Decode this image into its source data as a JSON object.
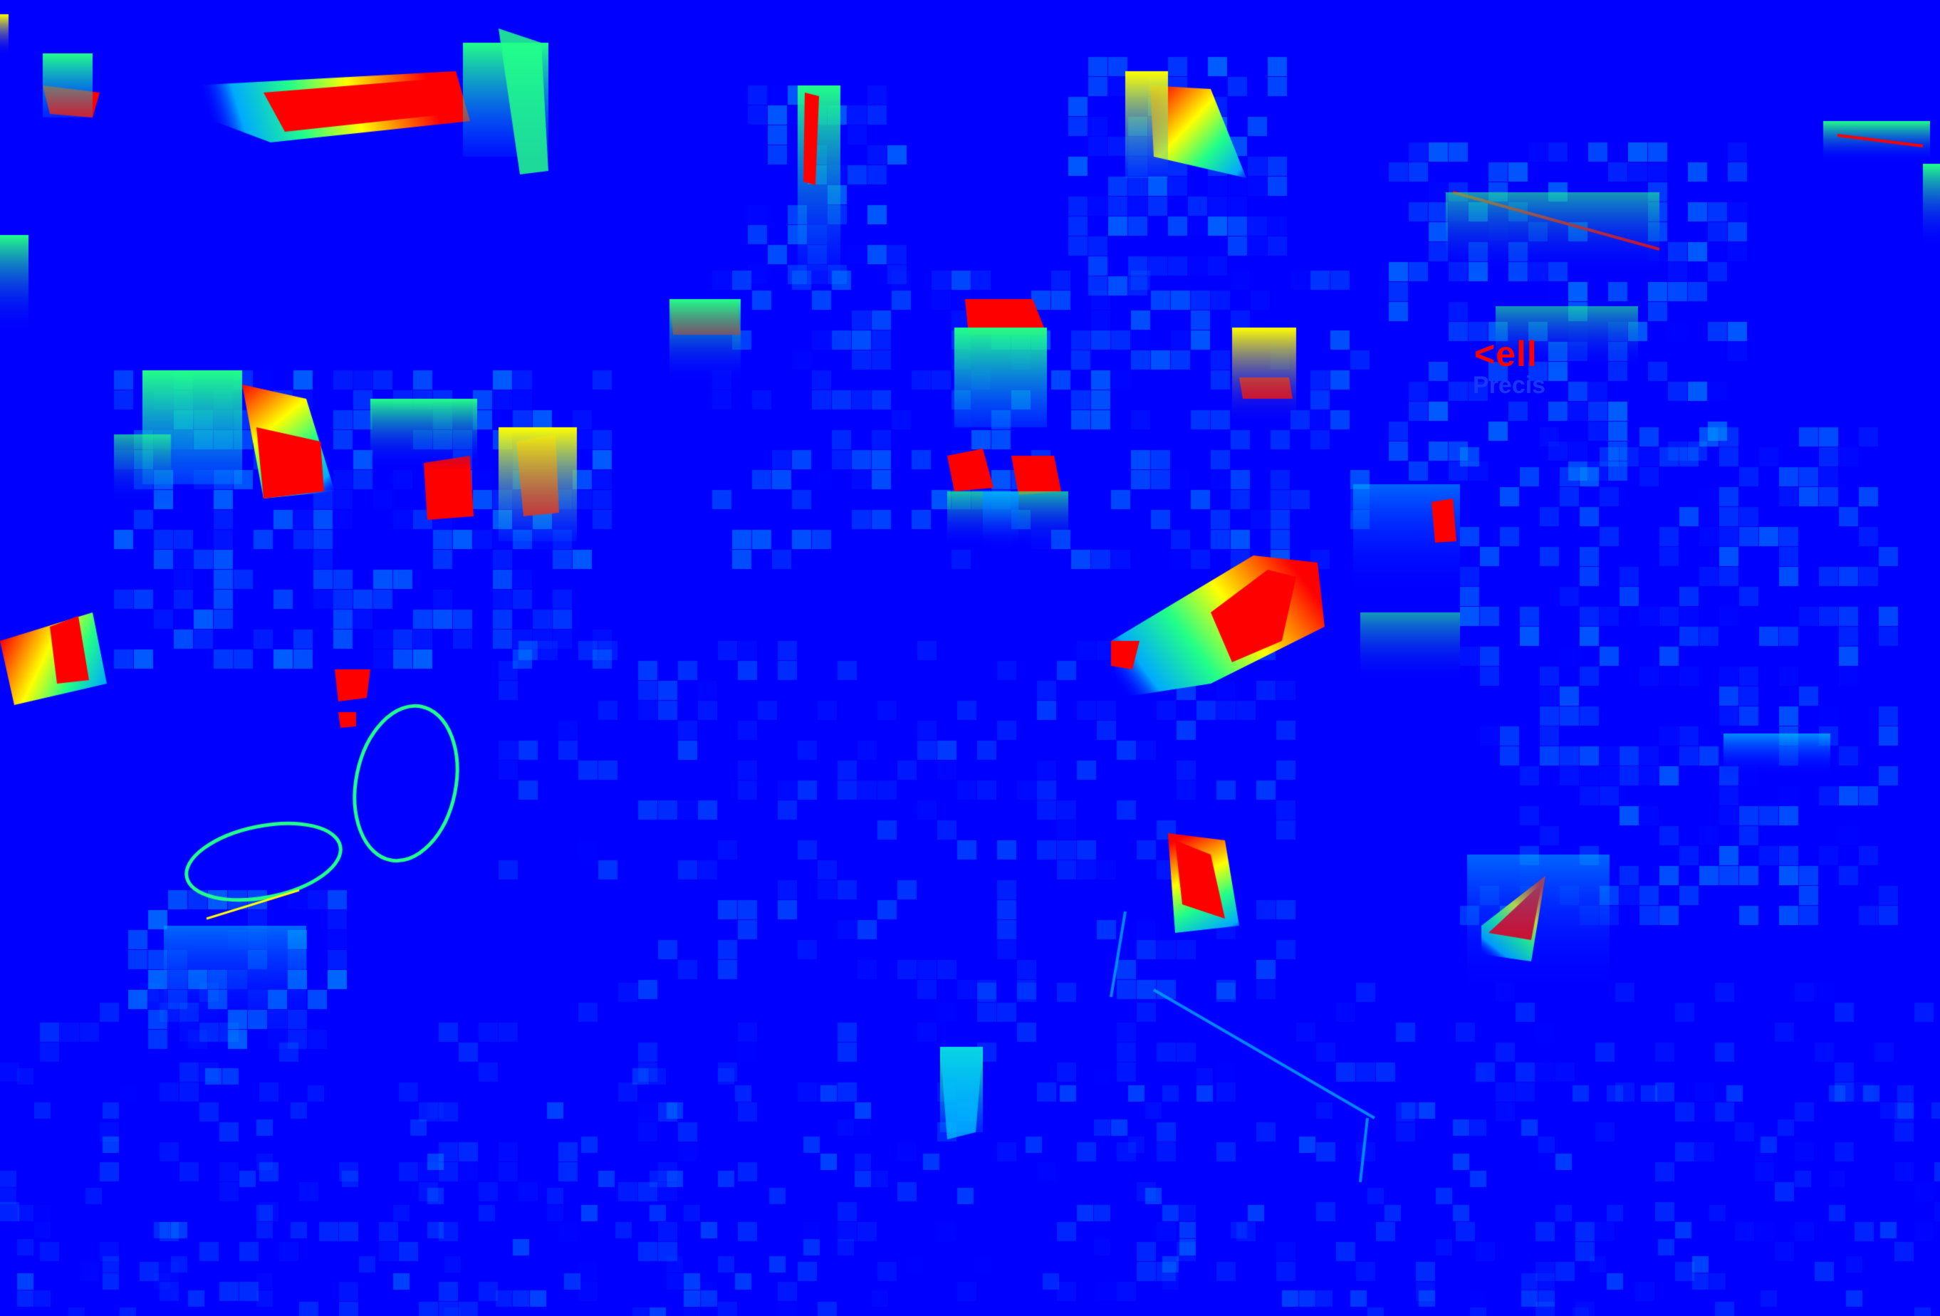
{
  "image": {
    "kind": "false-color heatmap render",
    "palette": {
      "background": "#0000ff",
      "low": "#0a1cff",
      "mid_low": "#00aaff",
      "mid": "#22ff88",
      "mid_high": "#ffff00",
      "high": "#ff0000"
    },
    "scene_text": {
      "brand": "<ell",
      "brand_sub": "Precis"
    }
  }
}
